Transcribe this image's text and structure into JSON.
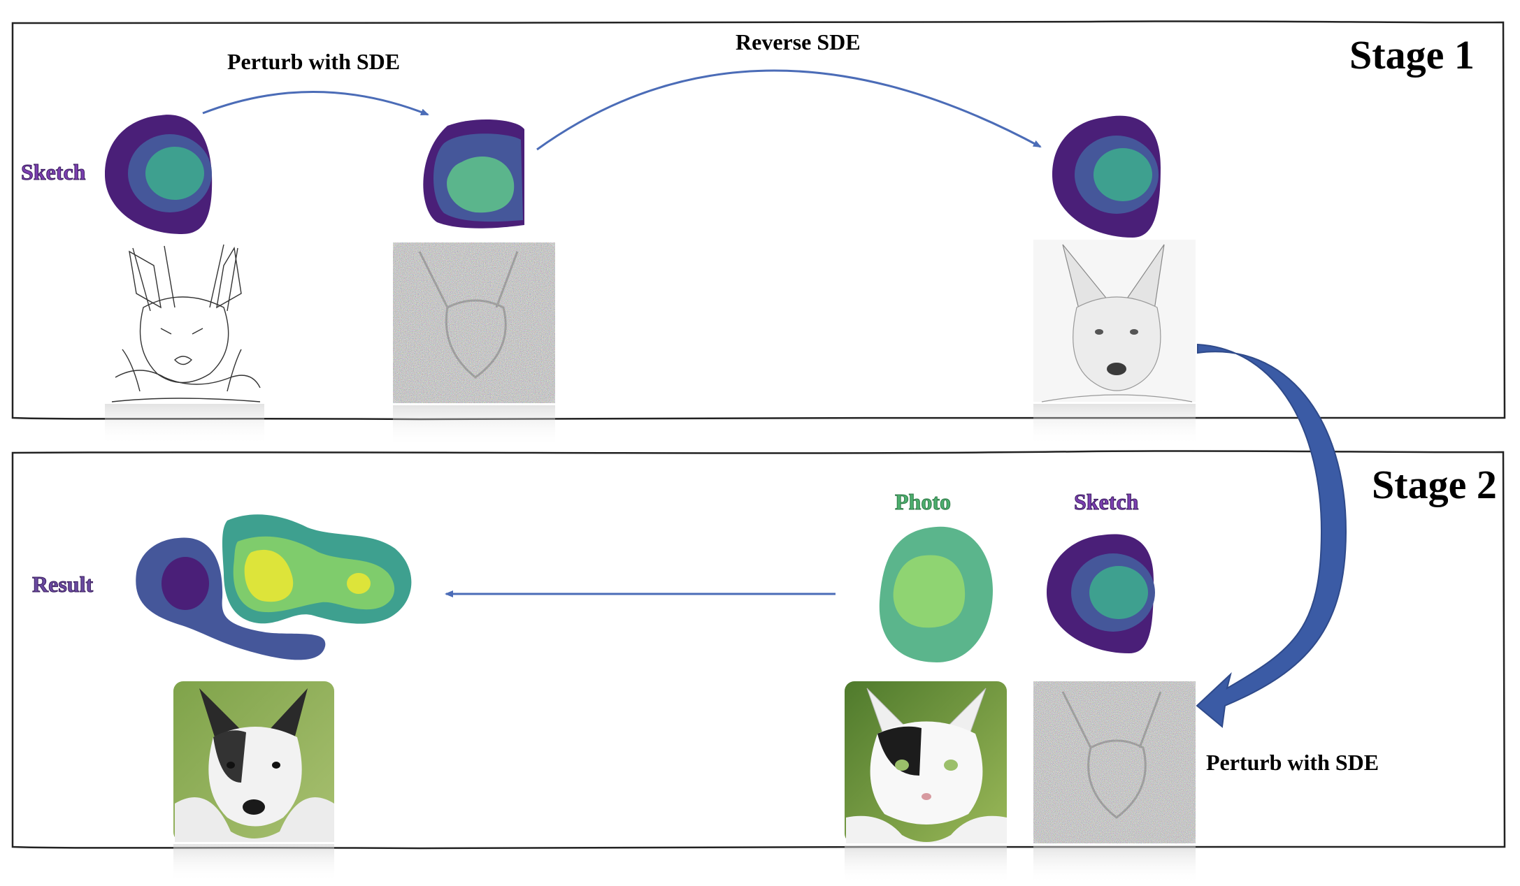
{
  "stage1": {
    "title": "Stage 1"
  },
  "stage2": {
    "title": "Stage 2"
  },
  "labels": {
    "perturb_top": "Perturb with SDE",
    "reverse": "Reverse SDE",
    "perturb_bottom": "Perturb with SDE",
    "sketch_stage1": "Sketch",
    "sketch_stage2": "Sketch",
    "photo": "Photo",
    "result": "Result"
  },
  "colors": {
    "dark_purple": "#4a1f78",
    "slate_blue": "#45579a",
    "teal": "#3a9a92",
    "sea_green": "#5bb58c",
    "light_green": "#7fcc6c",
    "yellow": "#dde43a",
    "arrow_blue": "#4b6cb7",
    "frame": "#222222"
  },
  "images": [
    "sketch-dog-image",
    "noisy-sketch-image",
    "reconstructed-sketch-dog-image",
    "cat-photo-image",
    "noisy-stage2-image",
    "result-dog-photo-image"
  ]
}
